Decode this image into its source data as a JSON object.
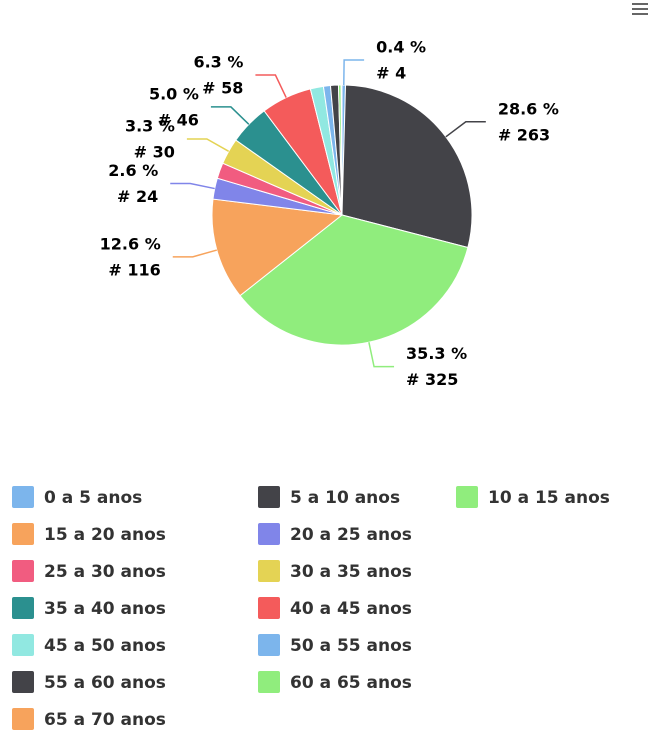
{
  "chart_data": {
    "type": "pie",
    "categories": [
      "0 a 5 anos",
      "5 a 10 anos",
      "10 a 15 anos",
      "15 a 20 anos",
      "20 a 25 anos",
      "25 a 30 anos",
      "30 a 35 anos",
      "35 a 40 anos",
      "40 a 45 anos",
      "45 a 50 anos",
      "50 a 55 anos",
      "55 a 60 anos",
      "60 a 65 anos",
      "65 a 70 anos"
    ],
    "values": [
      4,
      263,
      325,
      116,
      24,
      18,
      30,
      46,
      58,
      15,
      8,
      9,
      3,
      1
    ],
    "value_labels": [
      "# 4",
      "# 263",
      "# 325",
      "# 116",
      "# 24",
      null,
      "# 30",
      "# 46",
      "# 58",
      null,
      null,
      null,
      null,
      null
    ],
    "percent_labels": [
      "0.4 %",
      "28.6 %",
      "35.3 %",
      "12.6 %",
      "2.6 %",
      null,
      "3.3 %",
      "5.0 %",
      "6.3 %",
      null,
      null,
      null,
      null,
      null
    ],
    "colors": [
      "#7cb5ec",
      "#434348",
      "#90ed7d",
      "#f7a35c",
      "#8085e9",
      "#f15c80",
      "#e4d354",
      "#2b908f",
      "#f45b5b",
      "#91e8e1",
      "#7cb5ec",
      "#434348",
      "#90ed7d",
      "#f7a35c"
    ]
  }
}
